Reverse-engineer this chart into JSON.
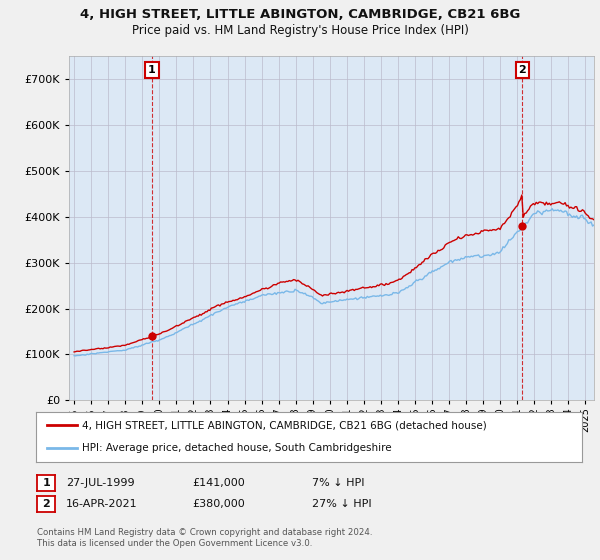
{
  "title_line1": "4, HIGH STREET, LITTLE ABINGTON, CAMBRIDGE, CB21 6BG",
  "title_line2": "Price paid vs. HM Land Registry's House Price Index (HPI)",
  "legend_line1": "4, HIGH STREET, LITTLE ABINGTON, CAMBRIDGE, CB21 6BG (detached house)",
  "legend_line2": "HPI: Average price, detached house, South Cambridgeshire",
  "annotation1_date": "27-JUL-1999",
  "annotation1_price": "£141,000",
  "annotation1_hpi": "7% ↓ HPI",
  "annotation2_date": "16-APR-2021",
  "annotation2_price": "£380,000",
  "annotation2_hpi": "27% ↓ HPI",
  "footnote": "Contains HM Land Registry data © Crown copyright and database right 2024.\nThis data is licensed under the Open Government Licence v3.0.",
  "ylim": [
    0,
    750000
  ],
  "yticks": [
    0,
    100000,
    200000,
    300000,
    400000,
    500000,
    600000,
    700000
  ],
  "background_color": "#f0f0f0",
  "plot_bg_color": "#dce8f5",
  "hpi_line_color": "#7ab8e8",
  "price_line_color": "#cc0000",
  "sale1_x": 1999.57,
  "sale1_y": 141000,
  "sale2_x": 2021.29,
  "sale2_y": 380000,
  "xmin": 1995.0,
  "xmax": 2025.5
}
